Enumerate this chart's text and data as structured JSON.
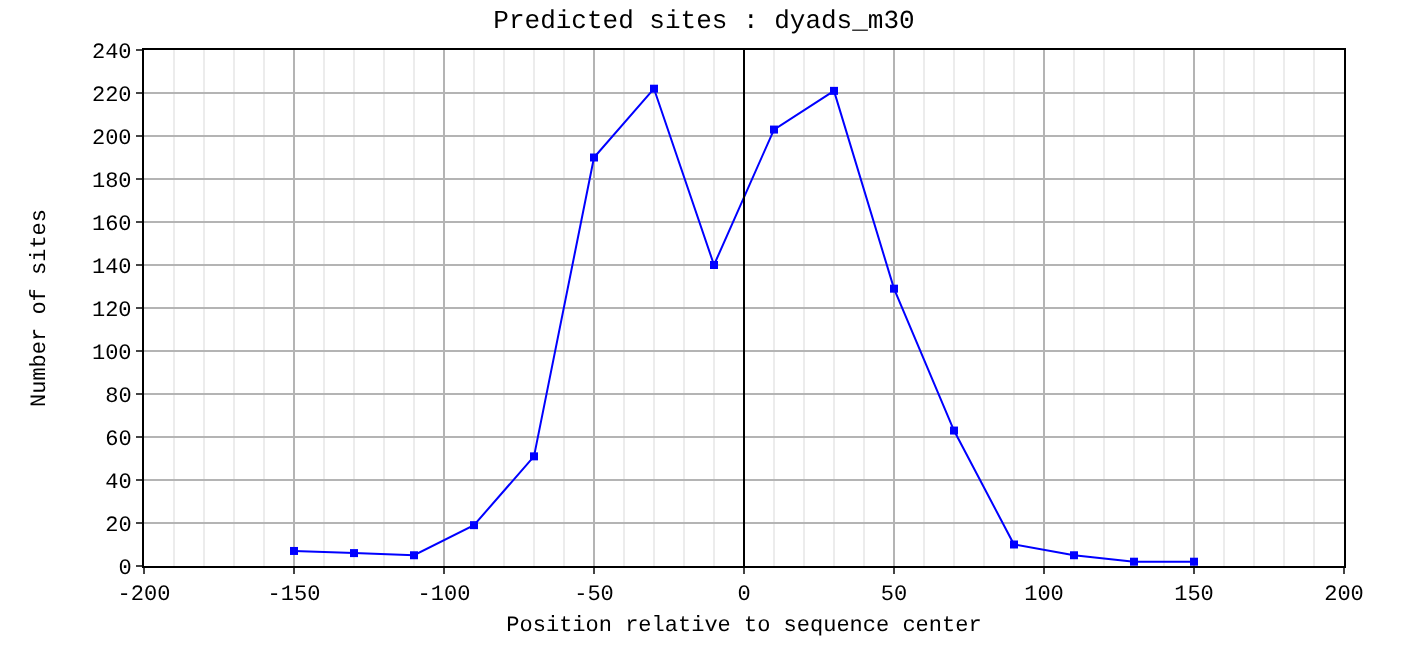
{
  "chart_data": {
    "type": "line",
    "title": "Predicted sites : dyads_m30",
    "xlabel": "Position relative to sequence center",
    "ylabel": "Number of sites",
    "x": [
      -150,
      -130,
      -110,
      -90,
      -70,
      -50,
      -30,
      -10,
      10,
      30,
      50,
      70,
      90,
      110,
      130,
      150
    ],
    "series": [
      {
        "color": "#0000ff",
        "values": [
          7,
          6,
          5,
          19,
          51,
          190,
          222,
          140,
          203,
          221,
          129,
          63,
          10,
          5,
          2,
          2
        ]
      }
    ],
    "xlim": [
      -200,
      200
    ],
    "xticks": [
      -200,
      -150,
      -100,
      -50,
      0,
      50,
      100,
      150,
      200
    ],
    "ylim": [
      0,
      240
    ],
    "yticks": [
      0,
      20,
      40,
      60,
      80,
      100,
      120,
      140,
      160,
      180,
      200,
      220,
      240
    ],
    "ref_lines": [
      {
        "axis": "x",
        "value": 0,
        "color": "#000000"
      }
    ],
    "grid": true,
    "marker": "square",
    "line_style": "solid"
  }
}
